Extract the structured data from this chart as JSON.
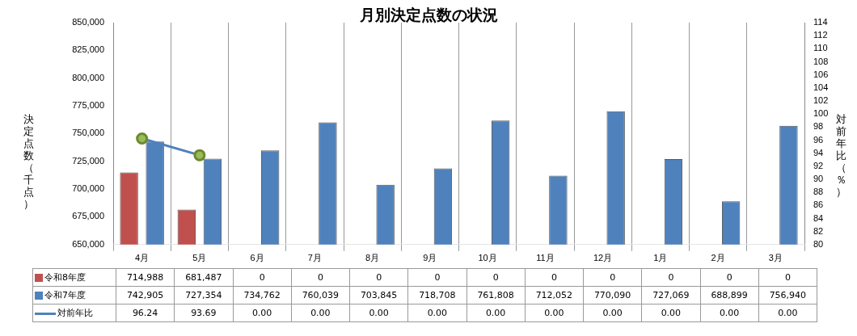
{
  "chart_data": {
    "type": "bar",
    "title": "月別決定点数の状況",
    "ylabel": "決定点数（千点）",
    "y2label": "対前年比（％）",
    "categories": [
      "4月",
      "5月",
      "6月",
      "7月",
      "8月",
      "9月",
      "10月",
      "11月",
      "12月",
      "1月",
      "2月",
      "3月"
    ],
    "series": [
      {
        "name": "令和8年度",
        "color": "#c0504d",
        "values": [
          714988,
          681487,
          null,
          null,
          null,
          null,
          null,
          null,
          null,
          null,
          null,
          null
        ],
        "value_labels": [
          "714,988",
          "681,487",
          "0",
          "0",
          "0",
          "0",
          "0",
          "0",
          "0",
          "0",
          "0",
          "0"
        ]
      },
      {
        "name": "令和7年度",
        "color": "#4f81bd",
        "values": [
          742905,
          727354,
          734762,
          760039,
          703845,
          718708,
          761808,
          712052,
          770090,
          727069,
          688899,
          756940
        ],
        "value_labels": [
          "742,905",
          "727,354",
          "734,762",
          "760,039",
          "703,845",
          "718,708",
          "761,808",
          "712,052",
          "770,090",
          "727,069",
          "688,899",
          "756,940"
        ]
      },
      {
        "name": "対前年比",
        "type": "line",
        "axis": "y2",
        "color": "#4f81bd",
        "marker": "circle",
        "values": [
          96.24,
          93.69,
          null,
          null,
          null,
          null,
          null,
          null,
          null,
          null,
          null,
          null
        ],
        "value_labels": [
          "96.24",
          "93.69",
          "0.00",
          "0.00",
          "0.00",
          "0.00",
          "0.00",
          "0.00",
          "0.00",
          "0.00",
          "0.00",
          "0.00"
        ]
      }
    ],
    "ylim": [
      650000,
      850000
    ],
    "yticks": [
      {
        "value": 650000,
        "label": "650,000"
      },
      {
        "value": 675000,
        "label": "675,000"
      },
      {
        "value": 700000,
        "label": "700,000"
      },
      {
        "value": 725000,
        "label": "725,000"
      },
      {
        "value": 750000,
        "label": "750,000"
      },
      {
        "value": 775000,
        "label": "775,000"
      },
      {
        "value": 800000,
        "label": "800,000"
      },
      {
        "value": 825000,
        "label": "825,000"
      },
      {
        "value": 850000,
        "label": "850,000"
      }
    ],
    "y2lim": [
      80,
      114
    ],
    "y2ticks": [
      80,
      82,
      84,
      86,
      88,
      90,
      92,
      94,
      96,
      98,
      100,
      102,
      104,
      106,
      108,
      110,
      112,
      114
    ],
    "grid": "x",
    "legend": "bottom"
  }
}
